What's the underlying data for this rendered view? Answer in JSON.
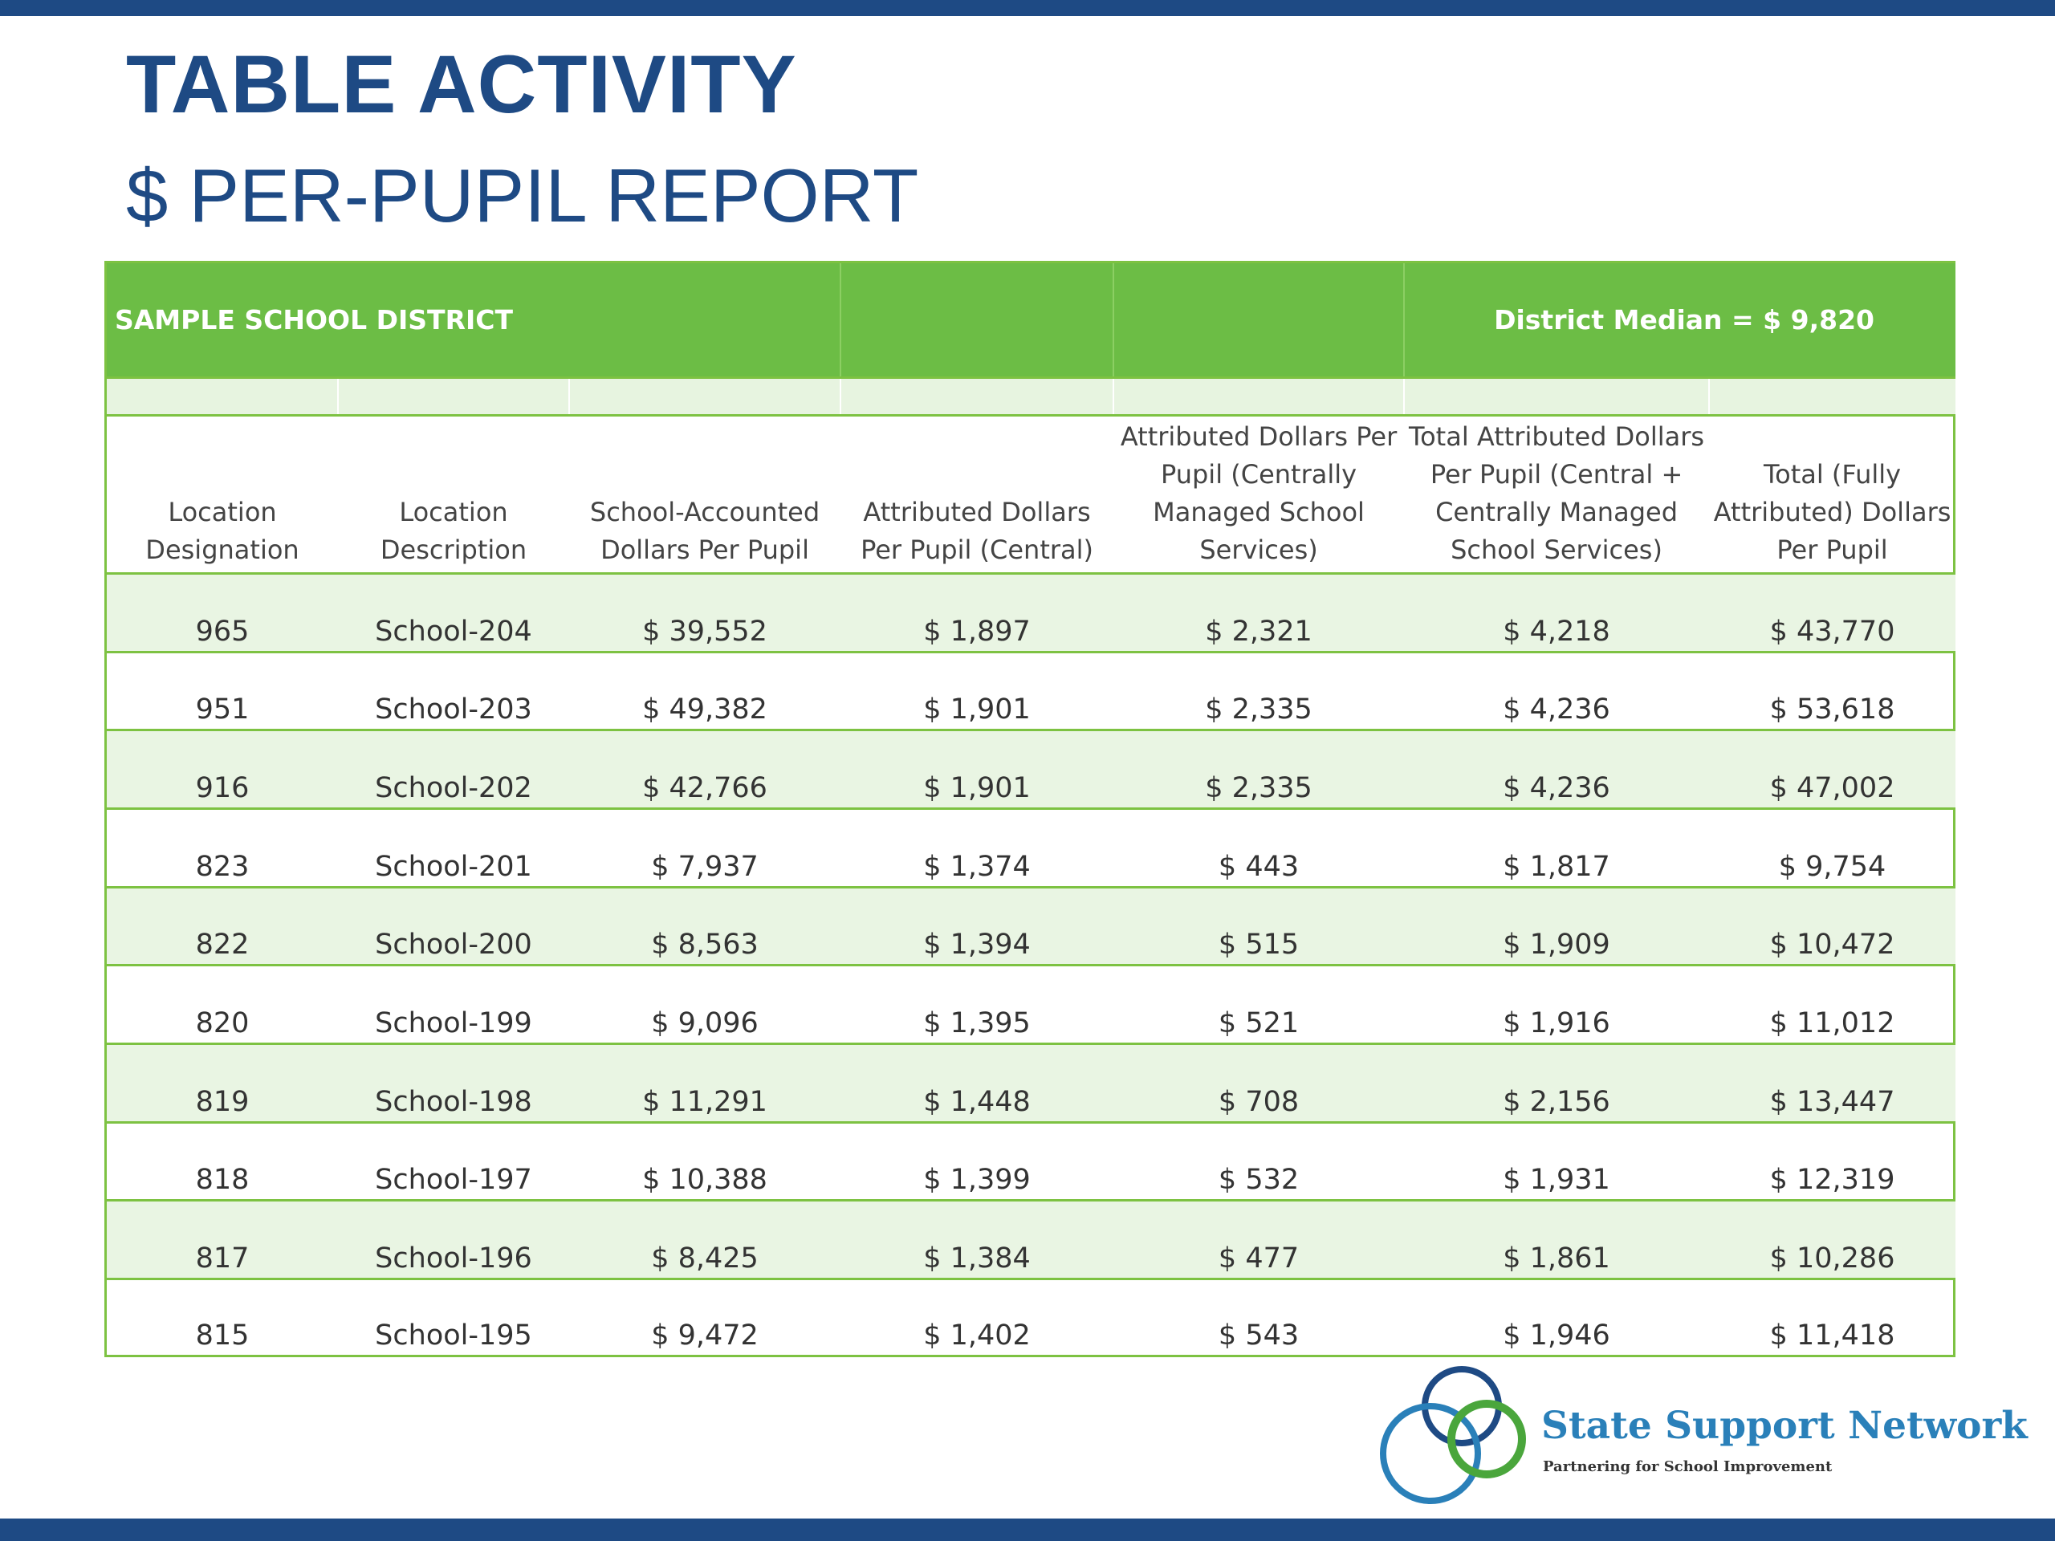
{
  "title": "TABLE ACTIVITY",
  "subtitle": "$ PER-PUPIL REPORT",
  "table": {
    "district_label": "SAMPLE SCHOOL DISTRICT",
    "district_median": "District Median = $ 9,820",
    "headers": [
      "Location Designation",
      "Location Description",
      "School-Accounted Dollars Per Pupil",
      "Attributed Dollars Per Pupil (Central)",
      "Attributed Dollars Per Pupil (Centrally Managed School Services)",
      "Total Attributed Dollars Per Pupil (Central + Centrally Managed School Services)",
      "Total (Fully Attributed) Dollars Per Pupil"
    ],
    "rows": [
      [
        "965",
        "School-204",
        "$ 39,552",
        "$ 1,897",
        "$ 2,321",
        "$ 4,218",
        "$ 43,770"
      ],
      [
        "951",
        "School-203",
        "$ 49,382",
        "$  1,901",
        "$ 2,335",
        "$ 4,236",
        "$ 53,618"
      ],
      [
        "916",
        "School-202",
        "$ 42,766",
        "$ 1,901",
        "$ 2,335",
        "$ 4,236",
        "$ 47,002"
      ],
      [
        "823",
        "School-201",
        "$  7,937",
        "$ 1,374",
        "$ 443",
        "$ 1,817",
        "$ 9,754"
      ],
      [
        "822",
        "School-200",
        "$ 8,563",
        "$ 1,394",
        "$ 515",
        "$ 1,909",
        "$ 10,472"
      ],
      [
        "820",
        "School-199",
        "$  9,096",
        "$ 1,395",
        "$ 521",
        "$ 1,916",
        "$ 11,012"
      ],
      [
        "819",
        "School-198",
        "$ 11,291",
        "$ 1,448",
        "$ 708",
        "$ 2,156",
        "$  13,447"
      ],
      [
        "818",
        "School-197",
        "$ 10,388",
        "$ 1,399",
        "$ 532",
        "$ 1,931",
        "$ 12,319"
      ],
      [
        "817",
        "School-196",
        "$ 8,425",
        "$ 1,384",
        "$ 477",
        "$ 1,861",
        "$ 10,286"
      ],
      [
        "815",
        "School-195",
        "$ 9,472",
        "$ 1,402",
        "$ 543",
        "$ 1,946",
        "$ 11,418"
      ]
    ]
  },
  "logo": {
    "name": "State Support Network",
    "tagline": "Partnering for School Improvement",
    "colors": [
      "#1e4a84",
      "#2a80b9",
      "#4aa63c"
    ]
  },
  "colors": {
    "brand_blue": "#1e4a84",
    "band_green": "#6cbd45",
    "rule_green": "#7dc242",
    "stripe": "#e9f5e3"
  }
}
